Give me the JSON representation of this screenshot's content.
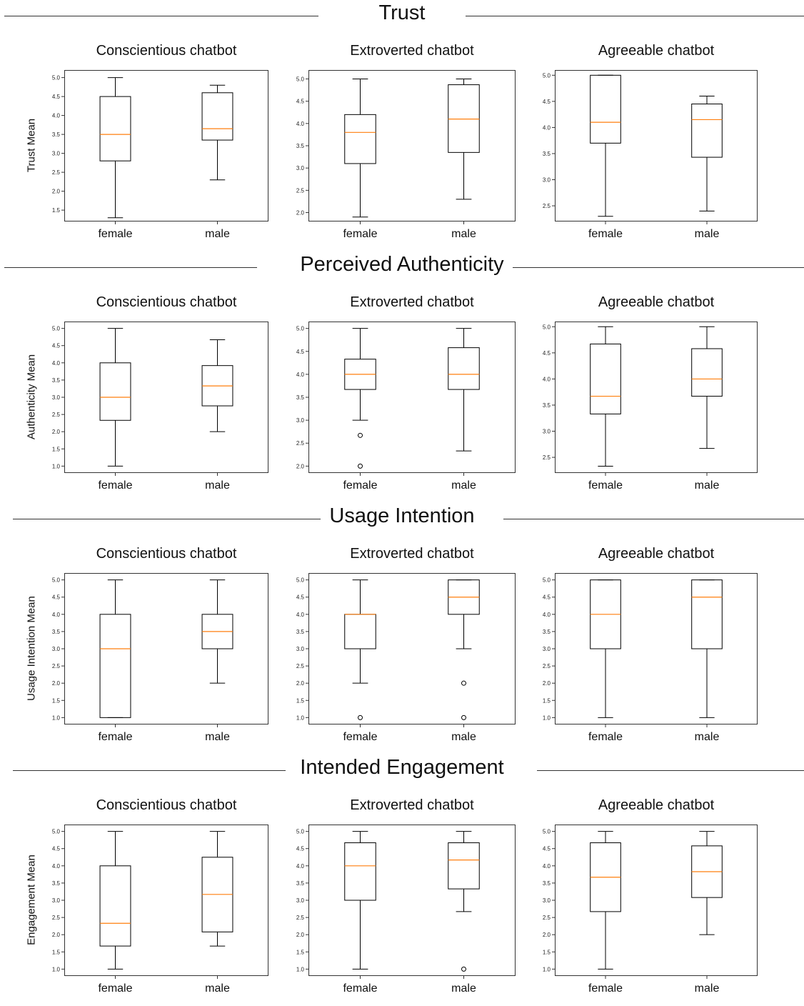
{
  "figure": {
    "sections": [
      {
        "title": "Trust",
        "ylabel": "Trust  Mean",
        "charts": [
          {
            "title": "Conscientious chatbot",
            "ylim": [
              1.2,
              5.2
            ],
            "ticks": [
              "1.5",
              "2.0",
              "2.5",
              "3.0",
              "3.5",
              "4.0",
              "4.5",
              "5.0"
            ]
          },
          {
            "title": "Extroverted chatbot",
            "ylim": [
              1.8,
              5.2
            ],
            "ticks": [
              "2.0",
              "2.5",
              "3.0",
              "3.5",
              "4.0",
              "4.5",
              "5.0"
            ]
          },
          {
            "title": "Agreeable chatbot",
            "ylim": [
              2.2,
              5.1
            ],
            "ticks": [
              "2.5",
              "3.0",
              "3.5",
              "4.0",
              "4.5",
              "5.0"
            ]
          }
        ]
      },
      {
        "title": "Perceived Authenticity",
        "ylabel": "Authenticity  Mean",
        "charts": [
          {
            "title": "Conscientious chatbot",
            "ylim": [
              0.8,
              5.2
            ],
            "ticks": [
              "1.0",
              "1.5",
              "2.0",
              "2.5",
              "3.0",
              "3.5",
              "4.0",
              "4.5",
              "5.0"
            ]
          },
          {
            "title": "Extroverted chatbot",
            "ylim": [
              1.85,
              5.15
            ],
            "ticks": [
              "2.0",
              "2.5",
              "3.0",
              "3.5",
              "4.0",
              "4.5",
              "5.0"
            ]
          },
          {
            "title": "Agreeable chatbot",
            "ylim": [
              2.2,
              5.1
            ],
            "ticks": [
              "2.5",
              "3.0",
              "3.5",
              "4.0",
              "4.5",
              "5.0"
            ]
          }
        ]
      },
      {
        "title": "Usage Intention",
        "ylabel": "Usage Intention Mean",
        "charts": [
          {
            "title": "Conscientious chatbot",
            "ylim": [
              0.8,
              5.2
            ],
            "ticks": [
              "1.0",
              "1.5",
              "2.0",
              "2.5",
              "3.0",
              "3.5",
              "4.0",
              "4.5",
              "5.0"
            ]
          },
          {
            "title": "Extroverted chatbot",
            "ylim": [
              0.8,
              5.2
            ],
            "ticks": [
              "1.0",
              "1.5",
              "2.0",
              "2.5",
              "3.0",
              "3.5",
              "4.0",
              "4.5",
              "5.0"
            ]
          },
          {
            "title": "Agreeable chatbot",
            "ylim": [
              0.8,
              5.2
            ],
            "ticks": [
              "1.0",
              "1.5",
              "2.0",
              "2.5",
              "3.0",
              "3.5",
              "4.0",
              "4.5",
              "5.0"
            ]
          }
        ]
      },
      {
        "title": "Intended Engagement",
        "ylabel": "Engagement Mean",
        "charts": [
          {
            "title": "Conscientious chatbot",
            "ylim": [
              0.8,
              5.2
            ],
            "ticks": [
              "1.0",
              "1.5",
              "2.0",
              "2.5",
              "3.0",
              "3.5",
              "4.0",
              "4.5",
              "5.0"
            ]
          },
          {
            "title": "Extroverted chatbot",
            "ylim": [
              0.8,
              5.2
            ],
            "ticks": [
              "1.0",
              "1.5",
              "2.0",
              "2.5",
              "3.0",
              "3.5",
              "4.0",
              "4.5",
              "5.0"
            ]
          },
          {
            "title": "Agreeable chatbot",
            "ylim": [
              0.8,
              5.2
            ],
            "ticks": [
              "1.0",
              "1.5",
              "2.0",
              "2.5",
              "3.0",
              "3.5",
              "4.0",
              "4.5",
              "5.0"
            ]
          }
        ]
      }
    ],
    "colors": {
      "median": "#ff7f0e",
      "box": "#000000",
      "rule": "#333333"
    }
  },
  "chart_data": [
    {
      "type": "box",
      "title": "Conscientious chatbot",
      "ylabel": "Trust  Mean",
      "categories": [
        "female",
        "male"
      ],
      "ylim": [
        1.2,
        5.2
      ],
      "grid": false,
      "boxes": [
        {
          "whislo": 1.3,
          "q1": 2.8,
          "med": 3.5,
          "q3": 4.5,
          "whishi": 5.0,
          "fliers": []
        },
        {
          "whislo": 2.3,
          "q1": 3.35,
          "med": 3.65,
          "q3": 4.6,
          "whishi": 4.8,
          "fliers": []
        }
      ]
    },
    {
      "type": "box",
      "title": "Extroverted chatbot",
      "categories": [
        "female",
        "male"
      ],
      "ylim": [
        1.8,
        5.2
      ],
      "grid": false,
      "boxes": [
        {
          "whislo": 1.9,
          "q1": 3.1,
          "med": 3.8,
          "q3": 4.2,
          "whishi": 5.0,
          "fliers": []
        },
        {
          "whislo": 2.3,
          "q1": 3.35,
          "med": 4.1,
          "q3": 4.87,
          "whishi": 5.0,
          "fliers": []
        }
      ]
    },
    {
      "type": "box",
      "title": "Agreeable chatbot",
      "categories": [
        "female",
        "male"
      ],
      "ylim": [
        2.2,
        5.1
      ],
      "grid": false,
      "boxes": [
        {
          "whislo": 2.3,
          "q1": 3.7,
          "med": 4.1,
          "q3": 5.0,
          "whishi": 5.0,
          "fliers": []
        },
        {
          "whislo": 2.4,
          "q1": 3.43,
          "med": 4.15,
          "q3": 4.45,
          "whishi": 4.6,
          "fliers": []
        }
      ]
    },
    {
      "type": "box",
      "title": "Conscientious chatbot",
      "ylabel": "Authenticity  Mean",
      "categories": [
        "female",
        "male"
      ],
      "ylim": [
        0.8,
        5.2
      ],
      "grid": false,
      "boxes": [
        {
          "whislo": 1.0,
          "q1": 2.33,
          "med": 3.0,
          "q3": 4.0,
          "whishi": 5.0,
          "fliers": []
        },
        {
          "whislo": 2.0,
          "q1": 2.75,
          "med": 3.33,
          "q3": 3.92,
          "whishi": 4.67,
          "fliers": []
        }
      ]
    },
    {
      "type": "box",
      "title": "Extroverted chatbot",
      "categories": [
        "female",
        "male"
      ],
      "ylim": [
        1.85,
        5.15
      ],
      "grid": false,
      "boxes": [
        {
          "whislo": 3.0,
          "q1": 3.67,
          "med": 4.0,
          "q3": 4.33,
          "whishi": 5.0,
          "fliers": [
            2.67,
            2.0
          ]
        },
        {
          "whislo": 2.33,
          "q1": 3.67,
          "med": 4.0,
          "q3": 4.58,
          "whishi": 5.0,
          "fliers": []
        }
      ]
    },
    {
      "type": "box",
      "title": "Agreeable chatbot",
      "categories": [
        "female",
        "male"
      ],
      "ylim": [
        2.2,
        5.1
      ],
      "grid": false,
      "boxes": [
        {
          "whislo": 2.33,
          "q1": 3.33,
          "med": 3.67,
          "q3": 4.67,
          "whishi": 5.0,
          "fliers": []
        },
        {
          "whislo": 2.67,
          "q1": 3.67,
          "med": 4.0,
          "q3": 4.58,
          "whishi": 5.0,
          "fliers": []
        }
      ]
    },
    {
      "type": "box",
      "title": "Conscientious chatbot",
      "ylabel": "Usage Intention Mean",
      "categories": [
        "female",
        "male"
      ],
      "ylim": [
        0.8,
        5.2
      ],
      "grid": false,
      "boxes": [
        {
          "whislo": 1.0,
          "q1": 1.0,
          "med": 3.0,
          "q3": 4.0,
          "whishi": 5.0,
          "fliers": []
        },
        {
          "whislo": 2.0,
          "q1": 3.0,
          "med": 3.5,
          "q3": 4.0,
          "whishi": 5.0,
          "fliers": []
        }
      ]
    },
    {
      "type": "box",
      "title": "Extroverted chatbot",
      "categories": [
        "female",
        "male"
      ],
      "ylim": [
        0.8,
        5.2
      ],
      "grid": false,
      "boxes": [
        {
          "whislo": 2.0,
          "q1": 3.0,
          "med": 4.0,
          "q3": 4.0,
          "whishi": 5.0,
          "fliers": [
            1.0
          ]
        },
        {
          "whislo": 3.0,
          "q1": 4.0,
          "med": 4.5,
          "q3": 5.0,
          "whishi": 5.0,
          "fliers": [
            2.0,
            1.0
          ]
        }
      ]
    },
    {
      "type": "box",
      "title": "Agreeable chatbot",
      "categories": [
        "female",
        "male"
      ],
      "ylim": [
        0.8,
        5.2
      ],
      "grid": false,
      "boxes": [
        {
          "whislo": 1.0,
          "q1": 3.0,
          "med": 4.0,
          "q3": 5.0,
          "whishi": 5.0,
          "fliers": []
        },
        {
          "whislo": 1.0,
          "q1": 3.0,
          "med": 4.5,
          "q3": 5.0,
          "whishi": 5.0,
          "fliers": []
        }
      ]
    },
    {
      "type": "box",
      "title": "Conscientious chatbot",
      "ylabel": "Engagement Mean",
      "categories": [
        "female",
        "male"
      ],
      "ylim": [
        0.8,
        5.2
      ],
      "grid": false,
      "boxes": [
        {
          "whislo": 1.0,
          "q1": 1.67,
          "med": 2.33,
          "q3": 4.0,
          "whishi": 5.0,
          "fliers": []
        },
        {
          "whislo": 1.67,
          "q1": 2.08,
          "med": 3.17,
          "q3": 4.25,
          "whishi": 5.0,
          "fliers": []
        }
      ]
    },
    {
      "type": "box",
      "title": "Extroverted chatbot",
      "categories": [
        "female",
        "male"
      ],
      "ylim": [
        0.8,
        5.2
      ],
      "grid": false,
      "boxes": [
        {
          "whislo": 1.0,
          "q1": 3.0,
          "med": 4.0,
          "q3": 4.67,
          "whishi": 5.0,
          "fliers": []
        },
        {
          "whislo": 2.67,
          "q1": 3.33,
          "med": 4.17,
          "q3": 4.67,
          "whishi": 5.0,
          "fliers": [
            1.0
          ]
        }
      ]
    },
    {
      "type": "box",
      "title": "Agreeable chatbot",
      "categories": [
        "female",
        "male"
      ],
      "ylim": [
        0.8,
        5.2
      ],
      "grid": false,
      "boxes": [
        {
          "whislo": 1.0,
          "q1": 2.67,
          "med": 3.67,
          "q3": 4.67,
          "whishi": 5.0,
          "fliers": []
        },
        {
          "whislo": 2.0,
          "q1": 3.08,
          "med": 3.83,
          "q3": 4.58,
          "whishi": 5.0,
          "fliers": []
        }
      ]
    }
  ]
}
